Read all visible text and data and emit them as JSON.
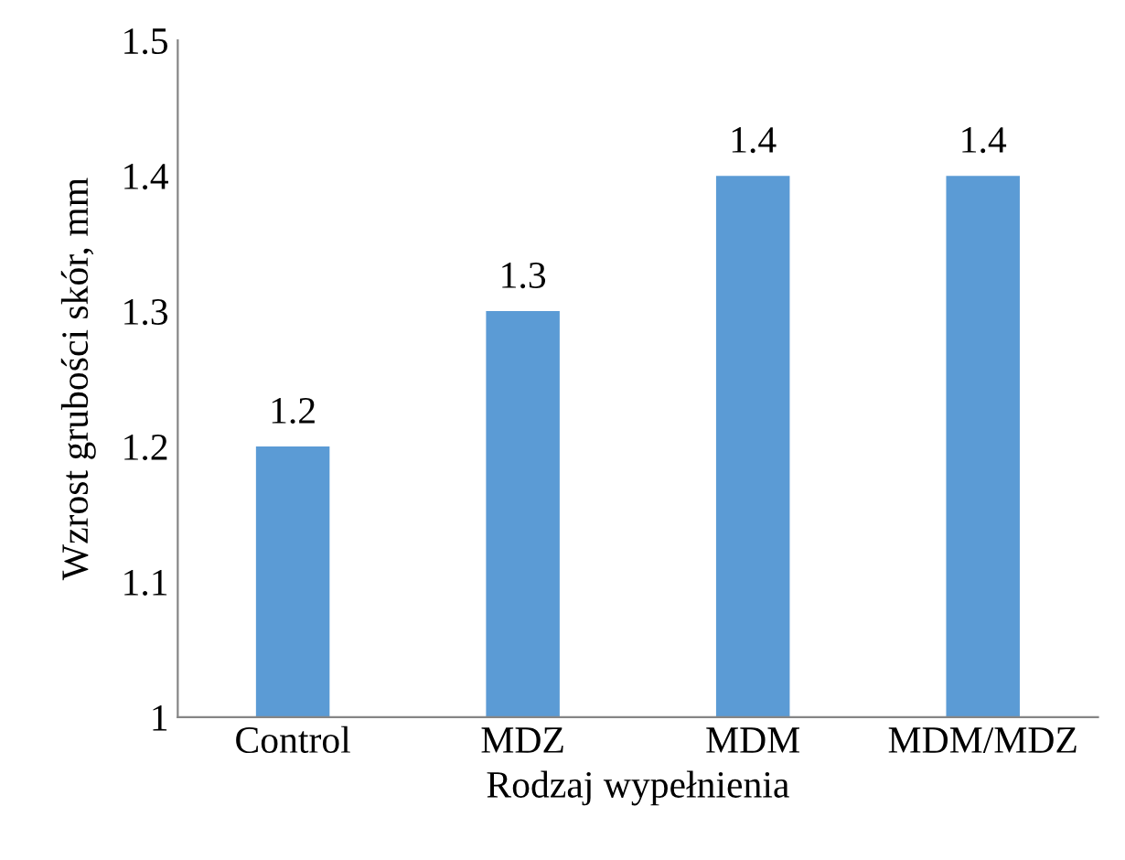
{
  "chart_data": {
    "type": "bar",
    "xlabel": "Rodzaj wypełnienia",
    "ylabel": "Wzrost grubości skór, mm",
    "categories": [
      "Control",
      "MDZ",
      "MDM",
      "MDM/MDZ"
    ],
    "values": [
      1.2,
      1.3,
      1.4,
      1.4
    ],
    "color": "#5b9bd5",
    "ylim": [
      1,
      1.5
    ],
    "yticks": [
      1,
      1.1,
      1.2,
      1.3,
      1.4,
      1.5
    ],
    "data_labels": true,
    "grid": false,
    "legend": false
  }
}
